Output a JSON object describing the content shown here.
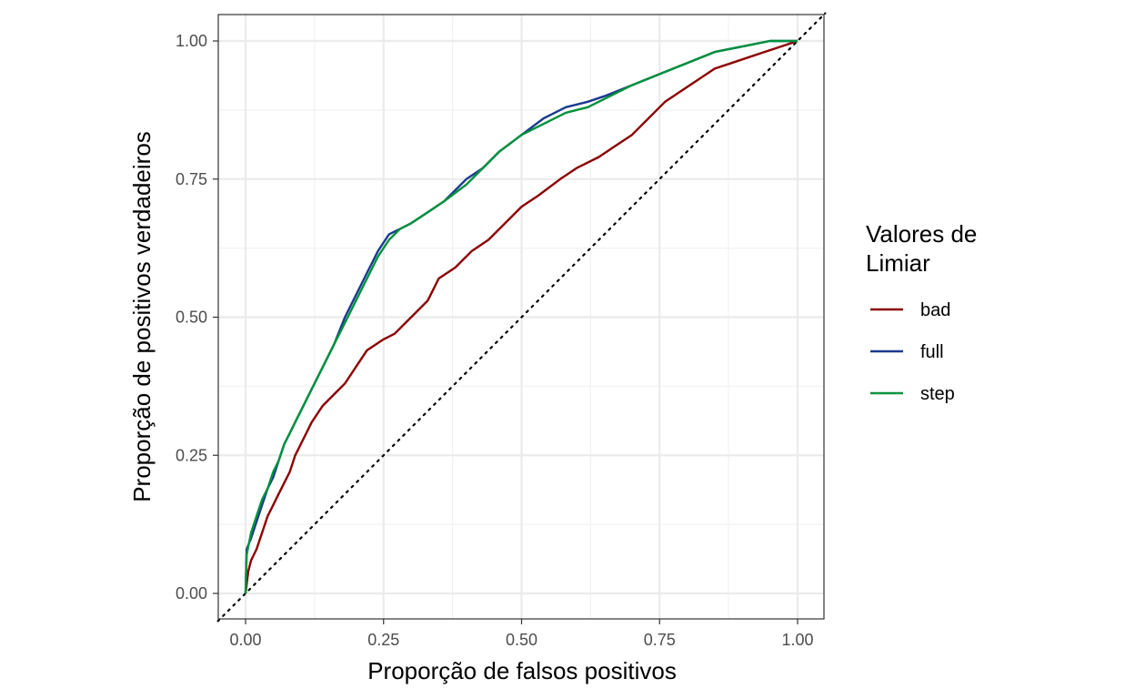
{
  "chart_data": {
    "type": "line",
    "title": "",
    "xlabel": "Proporção de falsos positivos",
    "ylabel": "Proporção de positivos verdadeiros",
    "xlim": [
      0,
      1
    ],
    "ylim": [
      0,
      1
    ],
    "x_ticks": [
      "0.00",
      "0.25",
      "0.50",
      "0.75",
      "1.00"
    ],
    "y_ticks": [
      "0.00",
      "0.25",
      "0.50",
      "0.75",
      "1.00"
    ],
    "grid": true,
    "legend": {
      "title_lines": [
        "Valores de",
        "Limiar"
      ],
      "position": "right"
    },
    "reference_line": {
      "style": "dotted",
      "from": [
        0,
        0
      ],
      "to": [
        1,
        1
      ],
      "color": "#000000"
    },
    "series": [
      {
        "name": "bad",
        "color": "#8b0000",
        "points": [
          [
            0,
            0
          ],
          [
            0.005,
            0.04
          ],
          [
            0.01,
            0.06
          ],
          [
            0.02,
            0.08
          ],
          [
            0.03,
            0.11
          ],
          [
            0.04,
            0.14
          ],
          [
            0.05,
            0.16
          ],
          [
            0.06,
            0.18
          ],
          [
            0.07,
            0.2
          ],
          [
            0.08,
            0.22
          ],
          [
            0.09,
            0.25
          ],
          [
            0.1,
            0.27
          ],
          [
            0.12,
            0.31
          ],
          [
            0.14,
            0.34
          ],
          [
            0.16,
            0.36
          ],
          [
            0.18,
            0.38
          ],
          [
            0.2,
            0.41
          ],
          [
            0.22,
            0.44
          ],
          [
            0.25,
            0.46
          ],
          [
            0.27,
            0.47
          ],
          [
            0.3,
            0.5
          ],
          [
            0.33,
            0.53
          ],
          [
            0.35,
            0.57
          ],
          [
            0.38,
            0.59
          ],
          [
            0.41,
            0.62
          ],
          [
            0.44,
            0.64
          ],
          [
            0.47,
            0.67
          ],
          [
            0.5,
            0.7
          ],
          [
            0.53,
            0.72
          ],
          [
            0.57,
            0.75
          ],
          [
            0.6,
            0.77
          ],
          [
            0.64,
            0.79
          ],
          [
            0.67,
            0.81
          ],
          [
            0.7,
            0.83
          ],
          [
            0.73,
            0.86
          ],
          [
            0.76,
            0.89
          ],
          [
            0.79,
            0.91
          ],
          [
            0.82,
            0.93
          ],
          [
            0.85,
            0.95
          ],
          [
            0.88,
            0.96
          ],
          [
            0.91,
            0.97
          ],
          [
            0.94,
            0.98
          ],
          [
            0.97,
            0.99
          ],
          [
            1,
            1
          ]
        ]
      },
      {
        "name": "full",
        "color": "#1a3a8f",
        "points": [
          [
            0,
            0
          ],
          [
            0.002,
            0.08
          ],
          [
            0.01,
            0.1
          ],
          [
            0.02,
            0.13
          ],
          [
            0.03,
            0.16
          ],
          [
            0.04,
            0.19
          ],
          [
            0.05,
            0.21
          ],
          [
            0.06,
            0.24
          ],
          [
            0.07,
            0.27
          ],
          [
            0.08,
            0.29
          ],
          [
            0.09,
            0.31
          ],
          [
            0.1,
            0.33
          ],
          [
            0.12,
            0.37
          ],
          [
            0.14,
            0.41
          ],
          [
            0.16,
            0.45
          ],
          [
            0.18,
            0.5
          ],
          [
            0.2,
            0.54
          ],
          [
            0.22,
            0.58
          ],
          [
            0.24,
            0.62
          ],
          [
            0.26,
            0.65
          ],
          [
            0.28,
            0.66
          ],
          [
            0.3,
            0.67
          ],
          [
            0.33,
            0.69
          ],
          [
            0.36,
            0.71
          ],
          [
            0.4,
            0.75
          ],
          [
            0.43,
            0.77
          ],
          [
            0.46,
            0.8
          ],
          [
            0.5,
            0.83
          ],
          [
            0.54,
            0.86
          ],
          [
            0.58,
            0.88
          ],
          [
            0.62,
            0.89
          ],
          [
            0.65,
            0.9
          ],
          [
            0.7,
            0.92
          ],
          [
            0.75,
            0.94
          ],
          [
            0.8,
            0.96
          ],
          [
            0.85,
            0.98
          ],
          [
            0.9,
            0.99
          ],
          [
            0.95,
            1
          ],
          [
            1,
            1
          ]
        ]
      },
      {
        "name": "step",
        "color": "#00913c",
        "points": [
          [
            0,
            0
          ],
          [
            0.002,
            0.07
          ],
          [
            0.01,
            0.11
          ],
          [
            0.02,
            0.14
          ],
          [
            0.03,
            0.17
          ],
          [
            0.04,
            0.19
          ],
          [
            0.05,
            0.22
          ],
          [
            0.06,
            0.24
          ],
          [
            0.07,
            0.27
          ],
          [
            0.08,
            0.29
          ],
          [
            0.09,
            0.31
          ],
          [
            0.1,
            0.33
          ],
          [
            0.12,
            0.37
          ],
          [
            0.14,
            0.41
          ],
          [
            0.16,
            0.45
          ],
          [
            0.18,
            0.49
          ],
          [
            0.2,
            0.53
          ],
          [
            0.22,
            0.57
          ],
          [
            0.24,
            0.61
          ],
          [
            0.26,
            0.64
          ],
          [
            0.28,
            0.66
          ],
          [
            0.3,
            0.67
          ],
          [
            0.33,
            0.69
          ],
          [
            0.36,
            0.71
          ],
          [
            0.4,
            0.74
          ],
          [
            0.43,
            0.77
          ],
          [
            0.46,
            0.8
          ],
          [
            0.5,
            0.83
          ],
          [
            0.54,
            0.85
          ],
          [
            0.58,
            0.87
          ],
          [
            0.62,
            0.88
          ],
          [
            0.66,
            0.9
          ],
          [
            0.7,
            0.92
          ],
          [
            0.75,
            0.94
          ],
          [
            0.8,
            0.96
          ],
          [
            0.85,
            0.98
          ],
          [
            0.9,
            0.99
          ],
          [
            0.95,
            1
          ],
          [
            1,
            1
          ]
        ]
      }
    ]
  }
}
